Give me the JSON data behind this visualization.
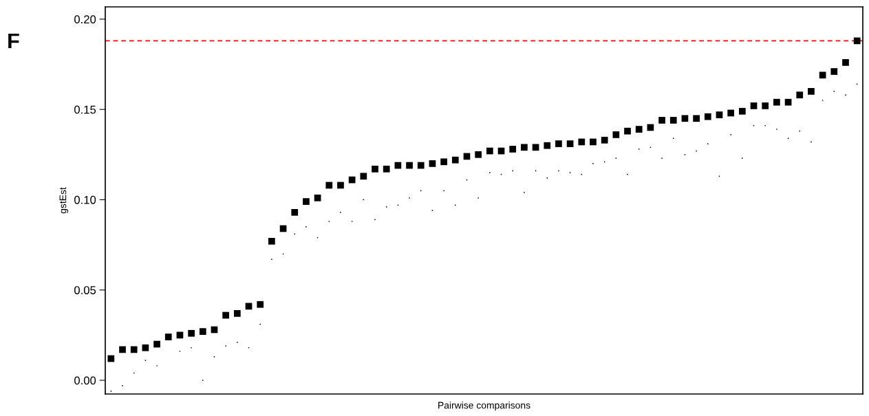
{
  "chart_data": {
    "type": "scatter",
    "xlabel": "Pairwise comparisons",
    "ylabel": "gstEst",
    "annotations": [
      "F"
    ],
    "categories": [
      null,
      null,
      null,
      null,
      null,
      null,
      null,
      null,
      null,
      null,
      null,
      null,
      null,
      null,
      null,
      null,
      null,
      null,
      null,
      null,
      null,
      null,
      null,
      null,
      null,
      null,
      null,
      null,
      null,
      null,
      null,
      null,
      null,
      null,
      null,
      null,
      null,
      null,
      null,
      null,
      null,
      null,
      null,
      null,
      null,
      null,
      null,
      null,
      null,
      null,
      null,
      null,
      null,
      null,
      null,
      null,
      null,
      null,
      null,
      null,
      null,
      null,
      null,
      null,
      null,
      null
    ],
    "series": [
      {
        "color": "#000000",
        "marker": "square",
        "values": [
          0.012,
          0.017,
          0.017,
          0.018,
          0.02,
          0.024,
          0.025,
          0.026,
          0.027,
          0.028,
          0.036,
          0.037,
          0.041,
          0.042,
          0.077,
          0.084,
          0.093,
          0.099,
          0.101,
          0.108,
          0.108,
          0.111,
          0.113,
          0.117,
          0.117,
          0.119,
          0.119,
          0.119,
          0.12,
          0.121,
          0.122,
          0.124,
          0.125,
          0.127,
          0.127,
          0.128,
          0.129,
          0.129,
          0.13,
          0.131,
          0.131,
          0.132,
          0.132,
          0.133,
          0.136,
          0.138,
          0.139,
          0.14,
          0.144,
          0.144,
          0.145,
          0.145,
          0.146,
          0.147,
          0.148,
          0.149,
          0.152,
          0.152,
          0.154,
          0.154,
          0.158,
          0.16,
          0.169,
          0.171,
          0.176,
          0.188
        ]
      },
      {
        "color": "#000000",
        "marker": "circle",
        "values": [
          -0.006,
          -0.003,
          0.004,
          0.011,
          0.008,
          null,
          0.016,
          0.018,
          0.0,
          0.013,
          0.019,
          0.021,
          0.018,
          0.031,
          0.067,
          0.07,
          0.081,
          0.085,
          0.079,
          0.088,
          0.093,
          0.088,
          0.1,
          0.089,
          0.096,
          0.097,
          0.101,
          0.105,
          0.094,
          0.105,
          0.097,
          0.111,
          0.101,
          0.115,
          0.114,
          0.116,
          0.104,
          0.116,
          0.112,
          0.116,
          0.115,
          0.114,
          0.12,
          0.121,
          0.123,
          0.114,
          0.128,
          0.129,
          0.123,
          0.134,
          0.125,
          0.127,
          0.131,
          0.113,
          0.136,
          0.123,
          0.141,
          0.141,
          0.139,
          0.134,
          0.138,
          0.132,
          0.155,
          0.16,
          0.158,
          0.164
        ]
      }
    ],
    "ylim": [
      -0.0076,
      0.2068
    ],
    "yticks": [
      {
        "value": 0,
        "label": "0.00"
      },
      0.05,
      {
        "value": 0.1,
        "label": "0.10"
      },
      0.15,
      {
        "value": 0.2,
        "label": "0.20"
      }
    ],
    "ref_lines": [
      {
        "axis": "y",
        "value": 0.188,
        "color": "#ff0000",
        "line_style": "dashed"
      }
    ],
    "tick_labels": "y",
    "grid": false,
    "legend": false
  }
}
